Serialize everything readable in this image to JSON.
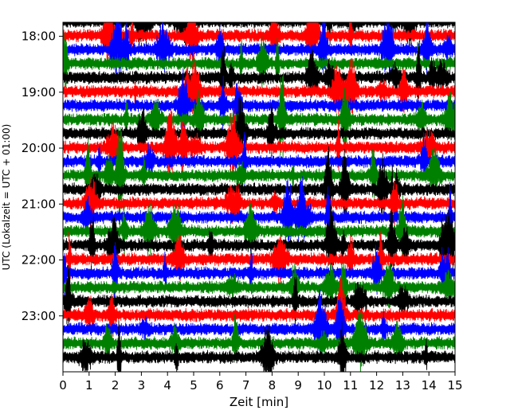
{
  "chart_data": {
    "type": "line",
    "title": "",
    "xlabel": "Zeit  [min]",
    "ylabel": "UTC (Lokalzeit = UTC + 01:00)",
    "xlim": [
      0,
      15
    ],
    "x_ticks": [
      "0",
      "1",
      "2",
      "3",
      "4",
      "5",
      "6",
      "7",
      "8",
      "9",
      "10",
      "11",
      "12",
      "13",
      "14",
      "15"
    ],
    "y_ticks": [
      "18:00",
      "19:00",
      "20:00",
      "21:00",
      "22:00",
      "23:00"
    ],
    "ylim_time": [
      "17:45",
      "24:00"
    ],
    "trace_interval_minutes": 15,
    "trace_start": "17:45",
    "trace_count": 25,
    "grid": false,
    "series": [
      {
        "color": "#000000"
      },
      {
        "color": "#ff0000"
      },
      {
        "color": "#0000ff"
      },
      {
        "color": "#008000"
      }
    ]
  }
}
